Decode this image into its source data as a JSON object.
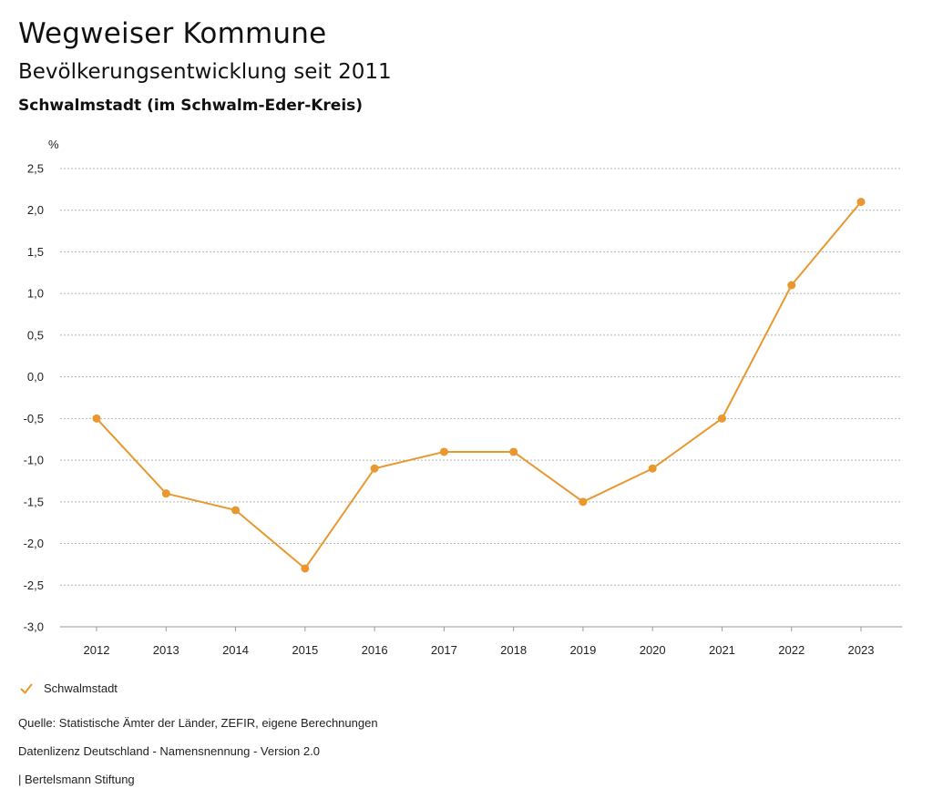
{
  "header": {
    "title": "Wegweiser Kommune",
    "subtitle": "Bevölkerungsentwicklung seit 2011",
    "region": "Schwalmstadt (im Schwalm-Eder-Kreis)"
  },
  "chart_data": {
    "type": "line",
    "title": "Bevölkerungsentwicklung seit 2011",
    "xlabel": "",
    "ylabel": "%",
    "ylim": [
      -3.0,
      2.5
    ],
    "yticks": [
      2.5,
      2.0,
      1.5,
      1.0,
      0.5,
      0.0,
      -0.5,
      -1.0,
      -1.5,
      -2.0,
      -2.5,
      -3.0
    ],
    "ytick_labels": [
      "2,5",
      "2,0",
      "1,5",
      "1,0",
      "0,5",
      "0,0",
      "-0,5",
      "-1,0",
      "-1,5",
      "-2,0",
      "-2,5",
      "-3,0"
    ],
    "categories": [
      "2012",
      "2013",
      "2014",
      "2015",
      "2016",
      "2017",
      "2018",
      "2019",
      "2020",
      "2021",
      "2022",
      "2023"
    ],
    "series": [
      {
        "name": "Schwalmstadt",
        "color": "#e8982e",
        "values": [
          -0.5,
          -1.4,
          -1.6,
          -2.3,
          -1.1,
          -0.9,
          -0.9,
          -1.5,
          -1.1,
          -0.5,
          1.1,
          2.1
        ]
      }
    ],
    "grid": true,
    "legend": "bottom-left"
  },
  "legend": {
    "label": "Schwalmstadt",
    "icon": "check-icon",
    "color": "#e8982e"
  },
  "footer": {
    "source": "Quelle: Statistische Ämter der Länder, ZEFIR, eigene Berechnungen",
    "license": "Datenlizenz Deutschland - Namensnennung - Version 2.0",
    "publisher": "| Bertelsmann Stiftung"
  }
}
